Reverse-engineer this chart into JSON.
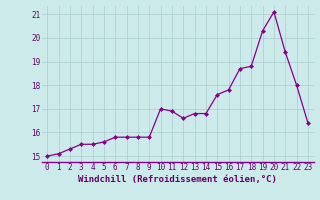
{
  "x": [
    0,
    1,
    2,
    3,
    4,
    5,
    6,
    7,
    8,
    9,
    10,
    11,
    12,
    13,
    14,
    15,
    16,
    17,
    18,
    19,
    20,
    21,
    22,
    23
  ],
  "y": [
    15.0,
    15.1,
    15.3,
    15.5,
    15.5,
    15.6,
    15.8,
    15.8,
    15.8,
    15.8,
    17.0,
    16.9,
    16.6,
    16.8,
    16.8,
    17.6,
    17.8,
    18.7,
    18.8,
    20.3,
    21.1,
    19.4,
    18.0,
    16.4
  ],
  "xlabel": "Windchill (Refroidissement éolien,°C)",
  "xlim_min": -0.5,
  "xlim_max": 23.5,
  "ylim_min": 14.75,
  "ylim_max": 21.35,
  "yticks": [
    15,
    16,
    17,
    18,
    19,
    20,
    21
  ],
  "xticks": [
    0,
    1,
    2,
    3,
    4,
    5,
    6,
    7,
    8,
    9,
    10,
    11,
    12,
    13,
    14,
    15,
    16,
    17,
    18,
    19,
    20,
    21,
    22,
    23
  ],
  "line_color": "#880088",
  "marker": "D",
  "marker_size": 2.0,
  "line_width": 0.9,
  "bg_color": "#cceaea",
  "grid_color": "#aacccc",
  "text_color": "#660066",
  "axis_line_color": "#880088",
  "tick_fontsize": 5.5,
  "xlabel_fontsize": 6.5,
  "xlabel_color": "#660066"
}
